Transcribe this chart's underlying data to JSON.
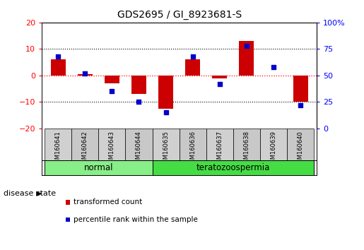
{
  "title": "GDS2695 / GI_8923681-S",
  "samples": [
    "GSM160641",
    "GSM160642",
    "GSM160643",
    "GSM160644",
    "GSM160635",
    "GSM160636",
    "GSM160637",
    "GSM160638",
    "GSM160639",
    "GSM160640"
  ],
  "red_values": [
    6.0,
    0.5,
    -3.0,
    -7.0,
    -12.5,
    6.2,
    -1.0,
    13.0,
    0.0,
    -10.0
  ],
  "blue_values": [
    68,
    52,
    35,
    25,
    15,
    68,
    42,
    78,
    58,
    22
  ],
  "left_ylim": [
    -20,
    20
  ],
  "right_ylim": [
    0,
    100
  ],
  "left_yticks": [
    -20,
    -10,
    0,
    10,
    20
  ],
  "right_yticks": [
    0,
    25,
    50,
    75,
    100
  ],
  "right_yticklabels": [
    "0",
    "25",
    "50",
    "75",
    "100%"
  ],
  "groups": [
    {
      "label": "normal",
      "indices": [
        0,
        1,
        2,
        3
      ],
      "color": "#88EE88"
    },
    {
      "label": "teratozoospermia",
      "indices": [
        4,
        5,
        6,
        7,
        8,
        9
      ],
      "color": "#44DD44"
    }
  ],
  "disease_state_label": "disease state",
  "red_color": "#CC0000",
  "blue_color": "#0000CC",
  "bar_width": 0.55,
  "blue_marker_size": 5,
  "legend_red_label": "transformed count",
  "legend_blue_label": "percentile rank within the sample",
  "grid_color": "black",
  "grid_style": "dotted",
  "hline_color": "red",
  "hline_style": "dotted",
  "bg_color": "white",
  "plot_bg_color": "white",
  "cell_colors": [
    "#D0D0D0",
    "#C8C8C8",
    "#D0D0D0",
    "#C8C8C8",
    "#D0D0D0",
    "#C8C8C8",
    "#D0D0D0",
    "#C8C8C8",
    "#D0D0D0",
    "#C8C8C8"
  ]
}
